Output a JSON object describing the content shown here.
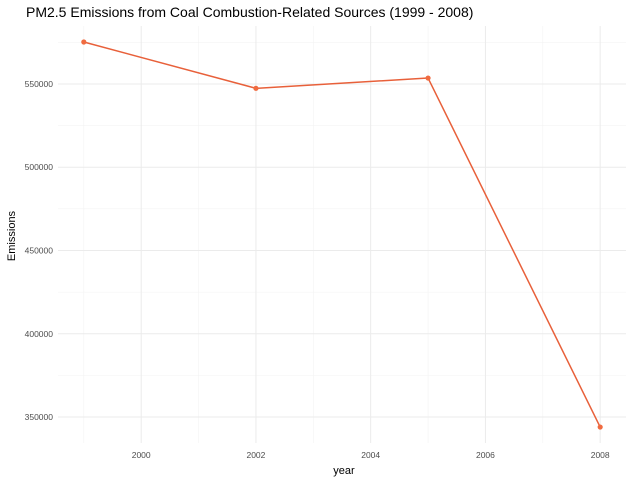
{
  "chart_data": {
    "type": "line",
    "title": "PM2.5 Emissions from Coal Combustion-Related Sources (1999 - 2008)",
    "xlabel": "year",
    "ylabel": "Emissions",
    "x": [
      1999,
      2002,
      2005,
      2008
    ],
    "series": [
      {
        "values": [
          575207,
          547380,
          553550,
          343980
        ]
      }
    ],
    "xlim": [
      1998.55,
      2008.45
    ],
    "ylim": [
      334400,
      584800
    ],
    "x_ticks": [
      2000,
      2002,
      2004,
      2006,
      2008
    ],
    "x_tick_labels": [
      "2000",
      "2002",
      "2004",
      "2006",
      "2008"
    ],
    "y_ticks": [
      350000,
      400000,
      450000,
      500000,
      550000
    ],
    "y_tick_labels": [
      "350000",
      "400000",
      "450000",
      "500000",
      "550000"
    ],
    "grid": true,
    "colors": {
      "line": "#e8603a",
      "point": "#f06b40"
    }
  }
}
